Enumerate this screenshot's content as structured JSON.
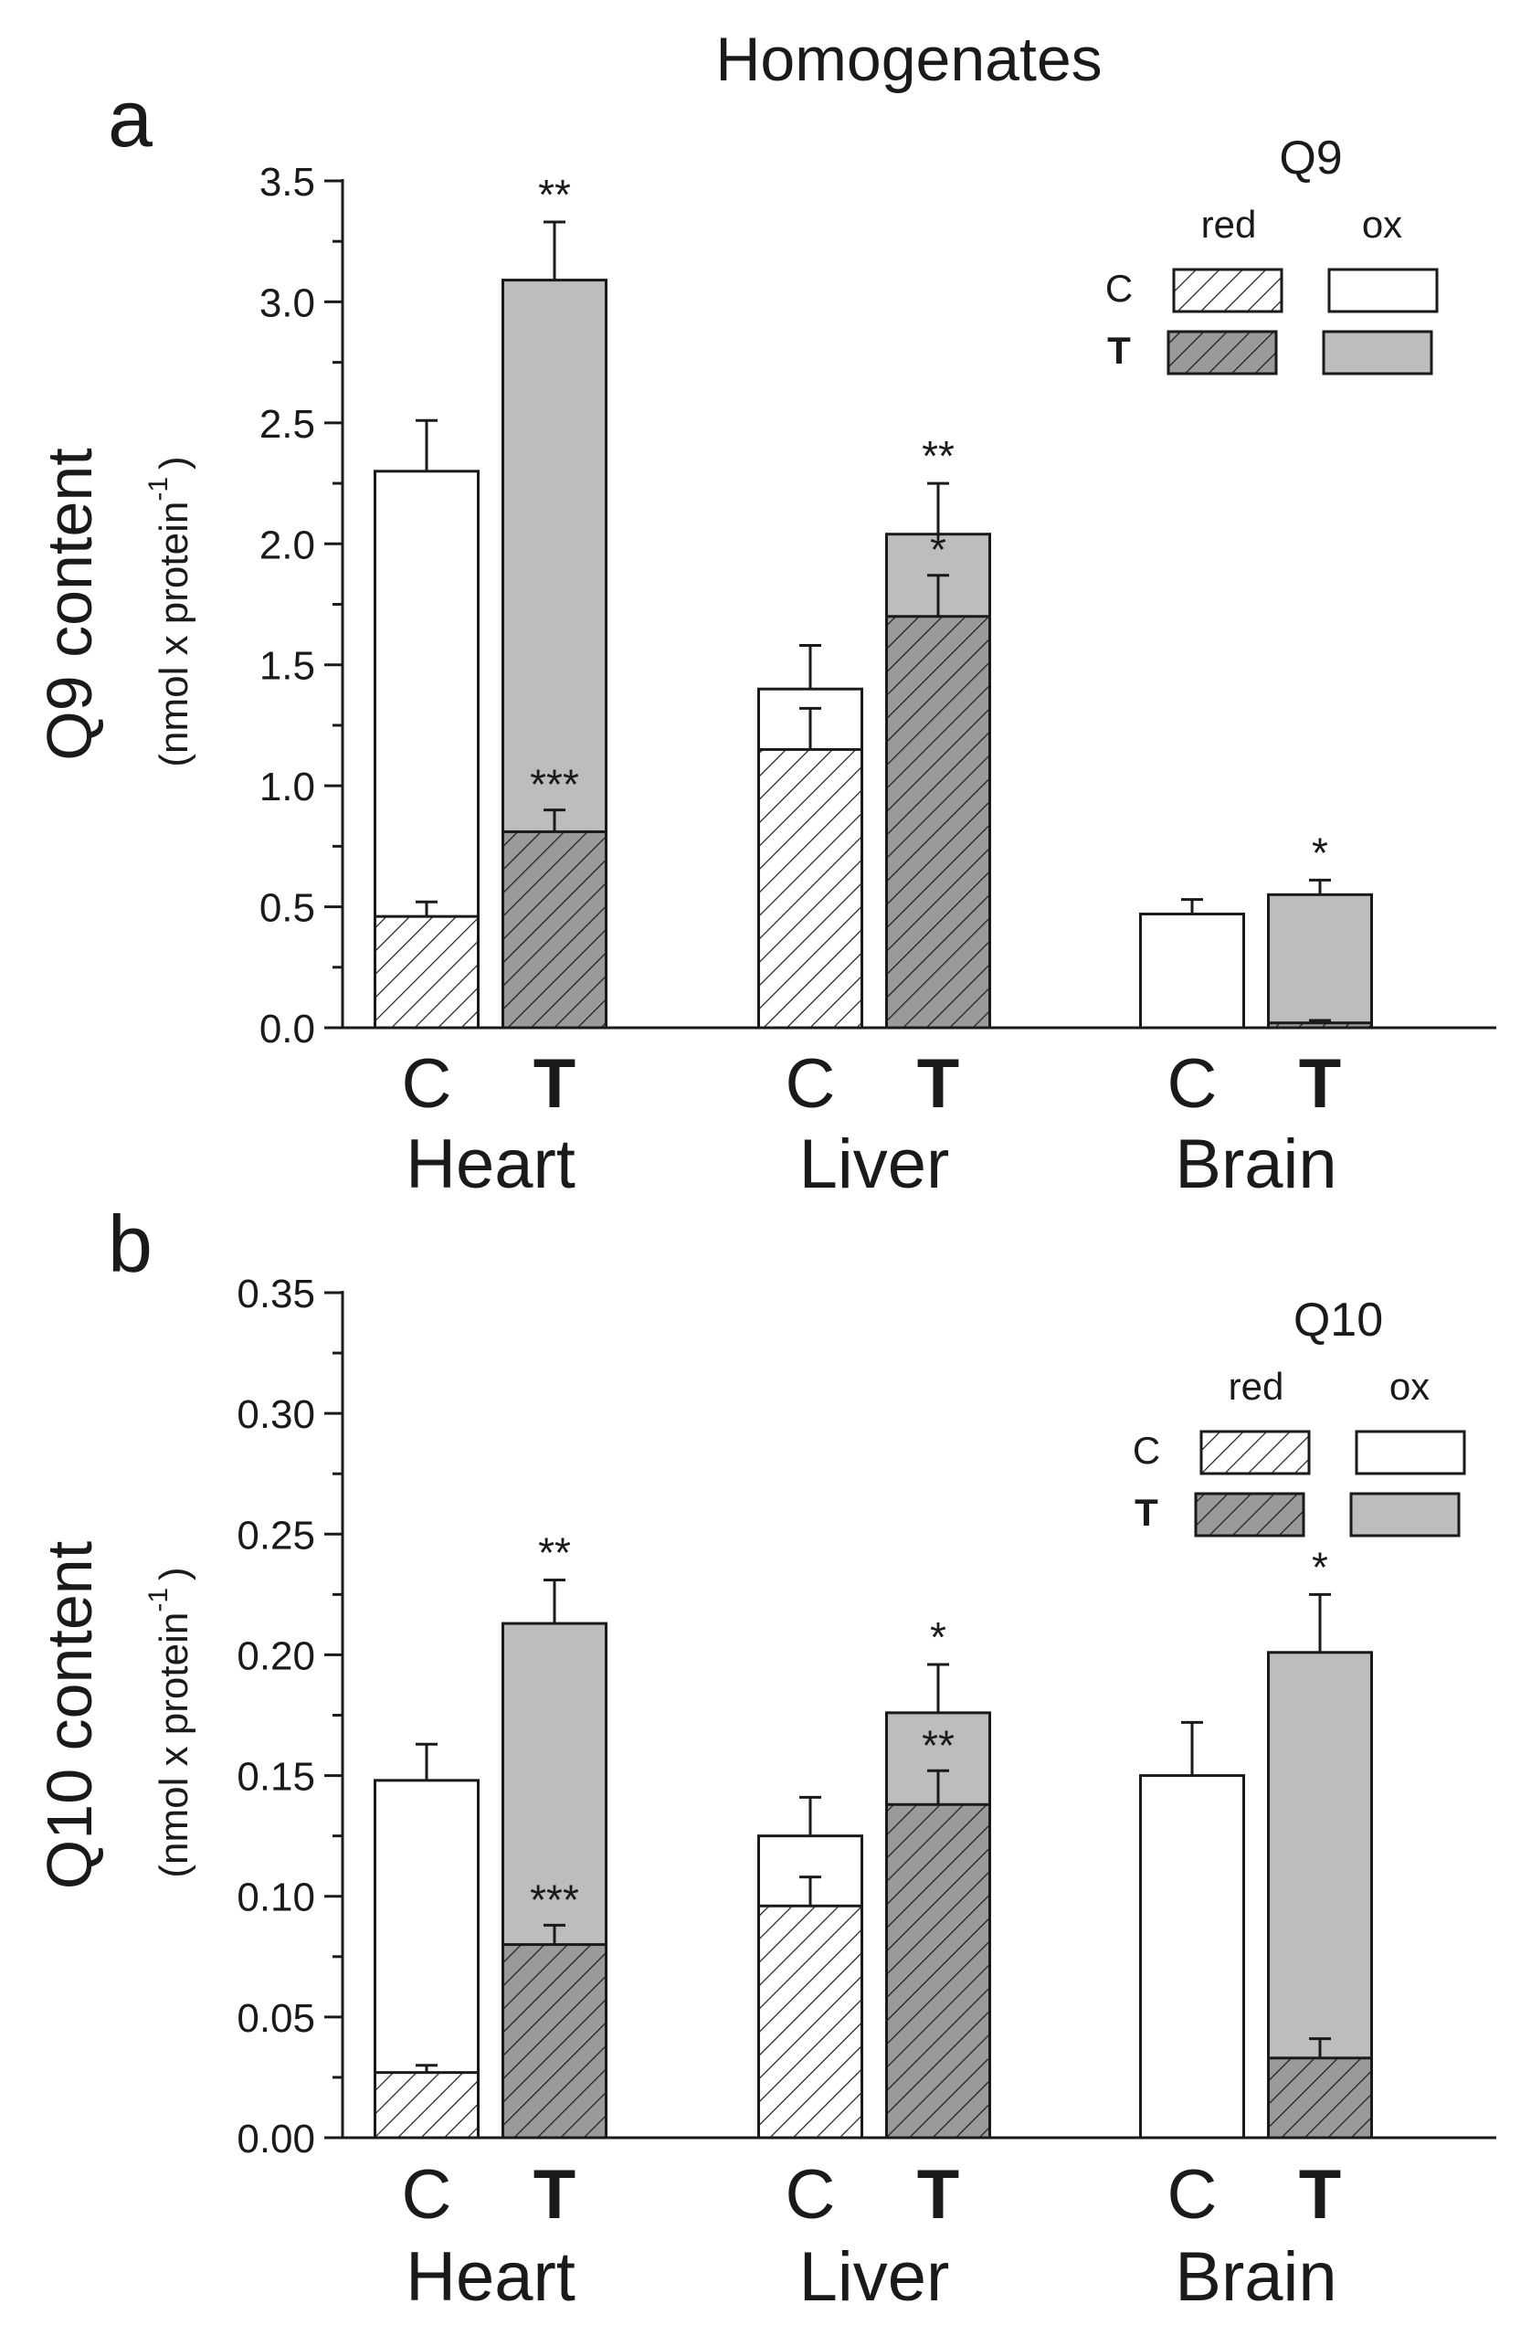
{
  "figure_title": "Homogenates",
  "colors": {
    "hatch_bar_fill": "#ffffff",
    "ox_T_fill": "#bdbdbd",
    "red_T_fill": "#9a9a9a",
    "ink": "#1a1a1a"
  },
  "chart_data": [
    {
      "panel": "a",
      "type": "bar",
      "stacked": true,
      "ylabel": "Q9 content",
      "ylabel_units": "(nmol x protein",
      "ylabel_units_sup": "-1",
      "ylabel_units_close": ")",
      "ylim": [
        0,
        3.5
      ],
      "yticks": [
        0.0,
        0.5,
        1.0,
        1.5,
        2.0,
        2.5,
        3.0,
        3.5
      ],
      "ytick_labels": [
        "0.0",
        "0.5",
        "1.0",
        "1.5",
        "2.0",
        "2.5",
        "3.0",
        "3.5"
      ],
      "legend": {
        "title": "Q9",
        "col_red": "red",
        "col_ox": "ox",
        "row_C": "C",
        "row_T": "T",
        "position": "top-right"
      },
      "groups": [
        {
          "name": "Heart",
          "bars": [
            {
              "label": "C",
              "group_type": "C",
              "red": 0.46,
              "red_err": 0.06,
              "red_sig": "",
              "total": 2.3,
              "total_err": 0.21,
              "total_sig": ""
            },
            {
              "label": "T",
              "group_type": "T",
              "red": 0.81,
              "red_err": 0.09,
              "red_sig": "***",
              "total": 3.09,
              "total_err": 0.24,
              "total_sig": "**"
            }
          ]
        },
        {
          "name": "Liver",
          "bars": [
            {
              "label": "C",
              "group_type": "C",
              "red": 1.15,
              "red_err": 0.17,
              "red_sig": "",
              "total": 1.4,
              "total_err": 0.18,
              "total_sig": ""
            },
            {
              "label": "T",
              "group_type": "T",
              "red": 1.7,
              "red_err": 0.17,
              "red_sig": "*",
              "total": 2.04,
              "total_err": 0.21,
              "total_sig": "**"
            }
          ]
        },
        {
          "name": "Brain",
          "bars": [
            {
              "label": "C",
              "group_type": "C",
              "red": 0.0,
              "red_err": 0,
              "red_sig": "",
              "total": 0.47,
              "total_err": 0.06,
              "total_sig": ""
            },
            {
              "label": "T",
              "group_type": "T",
              "red": 0.02,
              "red_err": 0.01,
              "red_sig": "",
              "total": 0.55,
              "total_err": 0.06,
              "total_sig": "*"
            }
          ]
        }
      ]
    },
    {
      "panel": "b",
      "type": "bar",
      "stacked": true,
      "ylabel": "Q10 content",
      "ylabel_units": "(nmol x protein",
      "ylabel_units_sup": "-1",
      "ylabel_units_close": ")",
      "ylim": [
        0,
        0.35
      ],
      "yticks": [
        0.0,
        0.05,
        0.1,
        0.15,
        0.2,
        0.25,
        0.3,
        0.35
      ],
      "ytick_labels": [
        "0.00",
        "0.05",
        "0.10",
        "0.15",
        "0.20",
        "0.25",
        "0.30",
        "0.35"
      ],
      "legend": {
        "title": "Q10",
        "col_red": "red",
        "col_ox": "ox",
        "row_C": "C",
        "row_T": "T",
        "position": "top-right"
      },
      "groups": [
        {
          "name": "Heart",
          "bars": [
            {
              "label": "C",
              "group_type": "C",
              "red": 0.027,
              "red_err": 0.003,
              "red_sig": "",
              "total": 0.148,
              "total_err": 0.015,
              "total_sig": ""
            },
            {
              "label": "T",
              "group_type": "T",
              "red": 0.08,
              "red_err": 0.008,
              "red_sig": "***",
              "total": 0.213,
              "total_err": 0.018,
              "total_sig": "**"
            }
          ]
        },
        {
          "name": "Liver",
          "bars": [
            {
              "label": "C",
              "group_type": "C",
              "red": 0.096,
              "red_err": 0.012,
              "red_sig": "",
              "total": 0.125,
              "total_err": 0.016,
              "total_sig": ""
            },
            {
              "label": "T",
              "group_type": "T",
              "red": 0.138,
              "red_err": 0.014,
              "red_sig": "**",
              "total": 0.176,
              "total_err": 0.02,
              "total_sig": "*"
            }
          ]
        },
        {
          "name": "Brain",
          "bars": [
            {
              "label": "C",
              "group_type": "C",
              "red": 0.0,
              "red_err": 0,
              "red_sig": "",
              "total": 0.15,
              "total_err": 0.022,
              "total_sig": ""
            },
            {
              "label": "T",
              "group_type": "T",
              "red": 0.033,
              "red_err": 0.008,
              "red_sig": "",
              "total": 0.201,
              "total_err": 0.024,
              "total_sig": "*"
            }
          ]
        }
      ]
    }
  ]
}
